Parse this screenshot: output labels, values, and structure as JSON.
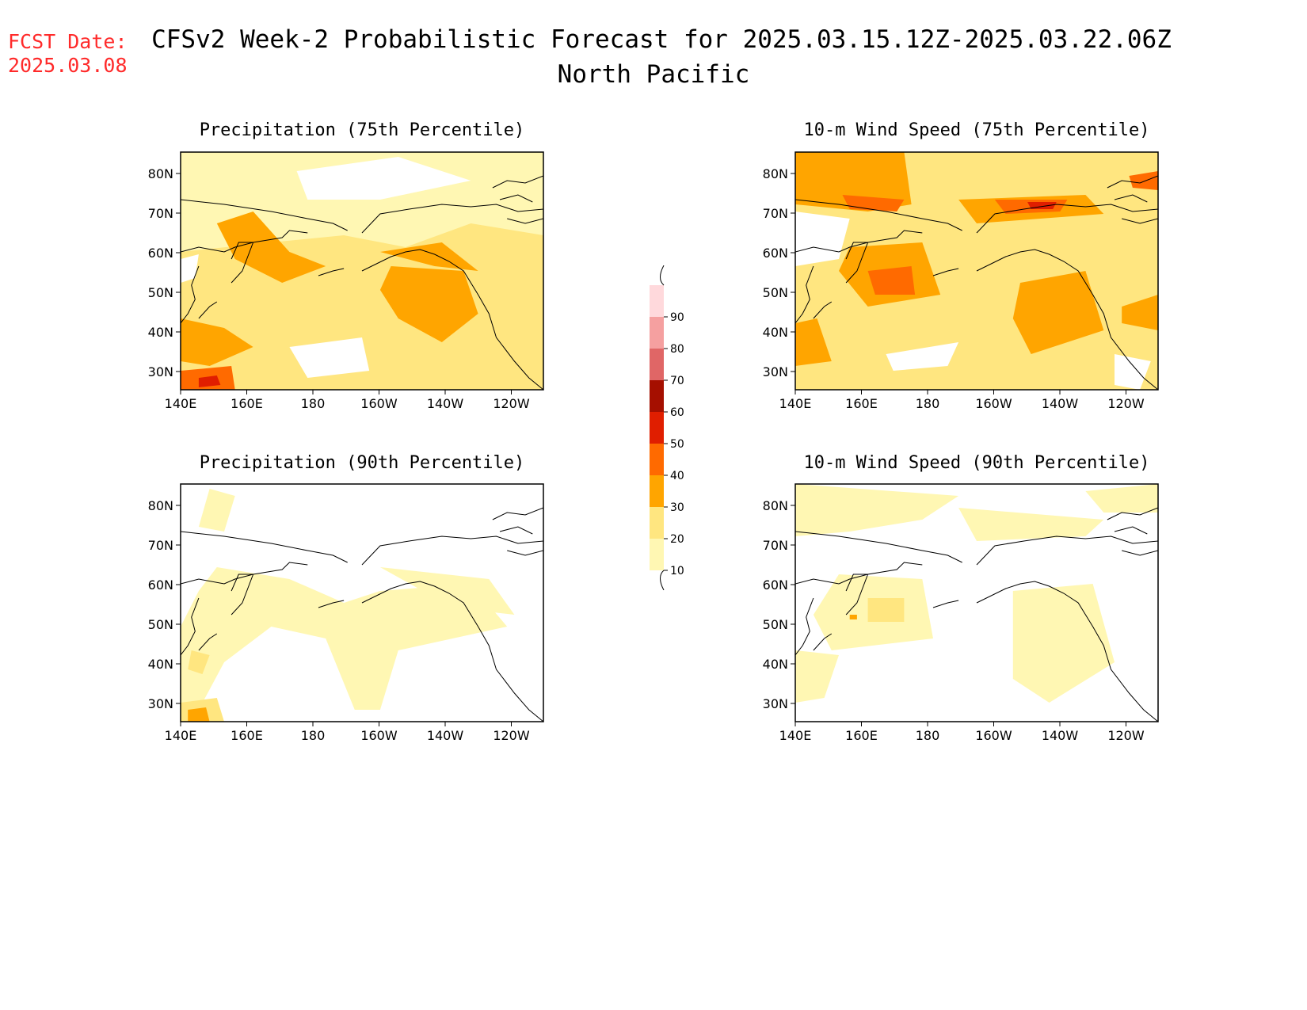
{
  "header": {
    "fcst_label": "FCST Date:",
    "fcst_date": "2025.03.08",
    "title": "CFSv2 Week-2 Probabilistic Forecast for 2025.03.15.12Z-2025.03.22.06Z",
    "region": "North Pacific"
  },
  "panels": [
    {
      "title": "Precipitation (75th Percentile)",
      "field": "precip75"
    },
    {
      "title": "10-m Wind Speed (75th Percentile)",
      "field": "wind75"
    },
    {
      "title": "Precipitation (90th Percentile)",
      "field": "precip90"
    },
    {
      "title": "10-m Wind Speed (90th Percentile)",
      "field": "wind90"
    }
  ],
  "axes": {
    "lat_labels": [
      "80N",
      "70N",
      "60N",
      "50N",
      "40N",
      "30N"
    ],
    "lon_labels": [
      "140E",
      "160E",
      "180",
      "160W",
      "140W",
      "120W"
    ]
  },
  "colorbar": {
    "levels": [
      "10",
      "20",
      "30",
      "40",
      "50",
      "60",
      "70",
      "80",
      "90"
    ],
    "colors": [
      "#fff7b3",
      "#ffe680",
      "#ffa500",
      "#ff6a00",
      "#e01e00",
      "#a50f00",
      "#e06666",
      "#f5a0a0",
      "#ffd9dc"
    ]
  }
}
